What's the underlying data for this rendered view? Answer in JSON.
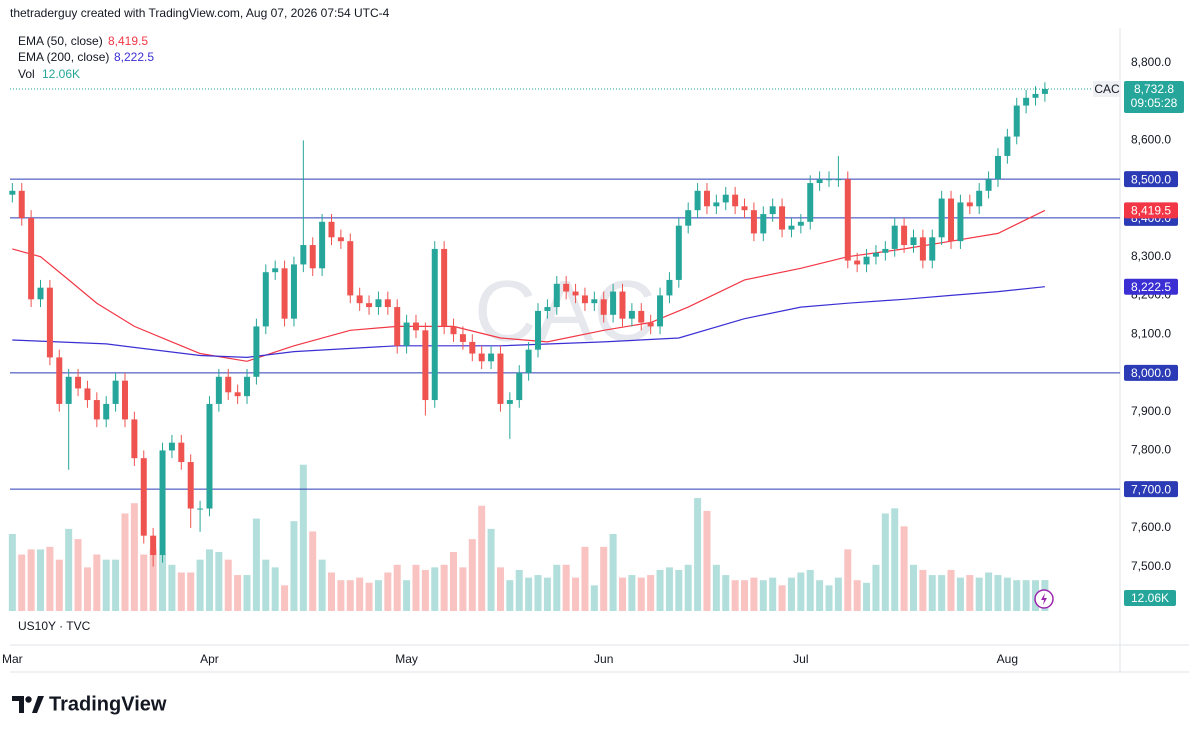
{
  "header": {
    "credit": "thetraderguy created with TradingView.com, Aug 07, 2026 07:54 UTC-4"
  },
  "footer": {
    "brand": "TradingView"
  },
  "chart_data": {
    "type": "candlestick",
    "symbol": "CAC",
    "watermark": "CAC",
    "pane2_title": "US10Y · TVC",
    "last_price_label": "8,732.8",
    "countdown": "09:05:28",
    "up_color": "#26a69a",
    "down_color": "#ef5350",
    "xlim": [
      -0.25,
      118
    ],
    "xticks": [
      {
        "value": 0,
        "label": "Mar"
      },
      {
        "value": 21,
        "label": "Apr"
      },
      {
        "value": 42,
        "label": "May"
      },
      {
        "value": 63,
        "label": "Jun"
      },
      {
        "value": 84,
        "label": "Jul"
      },
      {
        "value": 106,
        "label": "Aug"
      }
    ],
    "ylim": [
      7383,
      8885
    ],
    "yticks": [
      {
        "value": 8800,
        "label": "8,800.0"
      },
      {
        "value": 8600,
        "label": "8,600.0"
      },
      {
        "value": 8300,
        "label": "8,300.0"
      },
      {
        "value": 8200,
        "label": "8,200.0"
      },
      {
        "value": 8100,
        "label": "8,100.0"
      },
      {
        "value": 7900,
        "label": "7,900.0"
      },
      {
        "value": 7800,
        "label": "7,800.0"
      },
      {
        "value": 7600,
        "label": "7,600.0"
      },
      {
        "value": 7500,
        "label": "7,500.0"
      }
    ],
    "levels": [
      {
        "value": 8500,
        "label": "8,500.0"
      },
      {
        "value": 8400,
        "label": "8,400.0"
      },
      {
        "value": 8000,
        "label": "8,000.0"
      },
      {
        "value": 7700,
        "label": "7,700.0"
      }
    ],
    "level_color": "#2a3bb5",
    "open": [
      8460,
      8470,
      8400,
      8190,
      8220,
      8040,
      7920,
      7990,
      7960,
      7930,
      7880,
      7920,
      7980,
      7880,
      7780,
      7580,
      7530,
      7800,
      7820,
      7770,
      7650,
      7650,
      7920,
      7990,
      7950,
      7940,
      7990,
      8120,
      8260,
      8270,
      8140,
      8280,
      8330,
      8270,
      8390,
      8350,
      8340,
      8200,
      8180,
      8170,
      8190,
      8170,
      8070,
      8130,
      8110,
      7930,
      8320,
      8120,
      8100,
      8080,
      8050,
      8030,
      8050,
      7920,
      7930,
      8000,
      8060,
      8160,
      8170,
      8230,
      8210,
      8200,
      8180,
      8190,
      8150,
      8210,
      8140,
      8160,
      8130,
      8120,
      8200,
      8240,
      8380,
      8420,
      8470,
      8430,
      8440,
      8460,
      8430,
      8420,
      8360,
      8410,
      8430,
      8370,
      8380,
      8390,
      8490,
      8500,
      8500,
      8500,
      8290,
      8280,
      8300,
      8310,
      8320,
      8380,
      8330,
      8350,
      8290,
      8350,
      8450,
      8340,
      8440,
      8430,
      8470,
      8500,
      8560,
      8610,
      8690,
      8710,
      8720
    ],
    "high": [
      8490,
      8490,
      8420,
      8240,
      8240,
      8060,
      8010,
      8010,
      7980,
      7950,
      7940,
      8000,
      8000,
      7900,
      7800,
      7600,
      7820,
      7840,
      7840,
      7790,
      7670,
      7940,
      8010,
      8010,
      7970,
      8010,
      8140,
      8280,
      8290,
      8290,
      8300,
      8600,
      8350,
      8410,
      8410,
      8370,
      8360,
      8220,
      8200,
      8210,
      8210,
      8190,
      8150,
      8150,
      8130,
      8340,
      8340,
      8140,
      8120,
      8100,
      8070,
      8070,
      8070,
      7950,
      8020,
      8080,
      8180,
      8190,
      8250,
      8250,
      8230,
      8220,
      8210,
      8210,
      8230,
      8230,
      8180,
      8180,
      8150,
      8220,
      8260,
      8400,
      8440,
      8490,
      8490,
      8460,
      8480,
      8480,
      8450,
      8440,
      8430,
      8450,
      8450,
      8400,
      8410,
      8510,
      8520,
      8520,
      8560,
      8520,
      8310,
      8320,
      8330,
      8340,
      8400,
      8400,
      8370,
      8370,
      8370,
      8470,
      8470,
      8460,
      8460,
      8490,
      8520,
      8580,
      8630,
      8710,
      8730,
      8740,
      8750
    ],
    "low": [
      8440,
      8380,
      8170,
      8170,
      8020,
      7900,
      7750,
      7940,
      7910,
      7860,
      7860,
      7900,
      7860,
      7760,
      7560,
      7500,
      7510,
      7780,
      7750,
      7600,
      7590,
      7630,
      7900,
      7930,
      7920,
      7920,
      7970,
      8100,
      8240,
      8120,
      8120,
      8260,
      8250,
      8250,
      8330,
      8320,
      8180,
      8160,
      8150,
      8150,
      8150,
      8050,
      8050,
      8090,
      7890,
      7910,
      8100,
      8080,
      8060,
      8030,
      8010,
      8010,
      7900,
      7830,
      7910,
      7980,
      8040,
      8140,
      8150,
      8190,
      8180,
      8160,
      8160,
      8130,
      8130,
      8120,
      8120,
      8110,
      8100,
      8100,
      8180,
      8220,
      8360,
      8400,
      8410,
      8410,
      8420,
      8410,
      8400,
      8340,
      8340,
      8390,
      8350,
      8350,
      8360,
      8370,
      8470,
      8480,
      8480,
      8270,
      8260,
      8260,
      8280,
      8290,
      8300,
      8310,
      8310,
      8270,
      8270,
      8330,
      8320,
      8320,
      8410,
      8410,
      8450,
      8480,
      8540,
      8590,
      8670,
      8690,
      8700
    ],
    "close": [
      8470,
      8400,
      8190,
      8220,
      8040,
      7920,
      7990,
      7960,
      7930,
      7880,
      7920,
      7980,
      7880,
      7780,
      7580,
      7530,
      7800,
      7820,
      7770,
      7650,
      7650,
      7920,
      7990,
      7950,
      7940,
      7990,
      8120,
      8260,
      8270,
      8140,
      8280,
      8330,
      8270,
      8390,
      8350,
      8340,
      8200,
      8180,
      8170,
      8190,
      8170,
      8070,
      8130,
      8110,
      7930,
      8320,
      8120,
      8100,
      8080,
      8050,
      8030,
      8050,
      7920,
      7930,
      8000,
      8060,
      8160,
      8170,
      8230,
      8210,
      8200,
      8180,
      8190,
      8150,
      8210,
      8140,
      8160,
      8130,
      8120,
      8200,
      8240,
      8380,
      8420,
      8470,
      8430,
      8440,
      8460,
      8430,
      8420,
      8360,
      8410,
      8430,
      8370,
      8380,
      8390,
      8490,
      8500,
      8500,
      8500,
      8290,
      8280,
      8300,
      8310,
      8320,
      8380,
      8330,
      8350,
      8290,
      8350,
      8450,
      8340,
      8440,
      8430,
      8470,
      8500,
      8560,
      8610,
      8690,
      8710,
      8720,
      8732.8
    ],
    "overlays": [
      {
        "name": "EMA (50, close)",
        "color": "#f23645",
        "x": [
          0,
          3,
          6,
          9,
          13,
          17,
          20,
          25,
          30,
          36,
          41,
          47,
          52,
          57,
          63,
          68,
          72,
          78,
          84,
          89,
          95,
          100,
          105,
          110
        ],
        "values": [
          8320,
          8300,
          8240,
          8180,
          8120,
          8080,
          8050,
          8030,
          8070,
          8110,
          8120,
          8120,
          8090,
          8080,
          8110,
          8130,
          8170,
          8240,
          8270,
          8300,
          8320,
          8340,
          8360,
          8419.5
        ],
        "value_label": "8,419.5"
      },
      {
        "name": "EMA (200, close)",
        "color": "#3b2fd4",
        "x": [
          0,
          10,
          20,
          25,
          30,
          41,
          52,
          63,
          71,
          78,
          84,
          89,
          95,
          100,
          105,
          110
        ],
        "values": [
          8085,
          8075,
          8045,
          8040,
          8055,
          8070,
          8070,
          8080,
          8090,
          8140,
          8170,
          8180,
          8190,
          8200,
          8210,
          8222.5
        ],
        "value_label": "8,222.5"
      }
    ],
    "volume": {
      "name": "Vol",
      "ylim": [
        0,
        60
      ],
      "up_color": "#b2dfdb",
      "down_color": "#f8c3c1",
      "value_label": "12.06K",
      "values": [
        30,
        22,
        24,
        24,
        25,
        20,
        32,
        28,
        17,
        22,
        20,
        20,
        38,
        42,
        22,
        24,
        22,
        18,
        15,
        15,
        20,
        24,
        23,
        20,
        14,
        14,
        36,
        20,
        17,
        10,
        35,
        57,
        31,
        20,
        15,
        12,
        12,
        13,
        11,
        12,
        15,
        18,
        12,
        18,
        16,
        17,
        18,
        23,
        17,
        28,
        41,
        32,
        17,
        12,
        16,
        13,
        14,
        13,
        18,
        18,
        13,
        25,
        10,
        25,
        30,
        13,
        14,
        13,
        14,
        16,
        17,
        16,
        18,
        44,
        39,
        18,
        14,
        12,
        12,
        13,
        12,
        13,
        10,
        13,
        15,
        16,
        12,
        10,
        13,
        24,
        12,
        11,
        18,
        38,
        40,
        33,
        18,
        16,
        14,
        14,
        16,
        13,
        14,
        13,
        15,
        14,
        13,
        12,
        12,
        12,
        12.06
      ]
    }
  }
}
